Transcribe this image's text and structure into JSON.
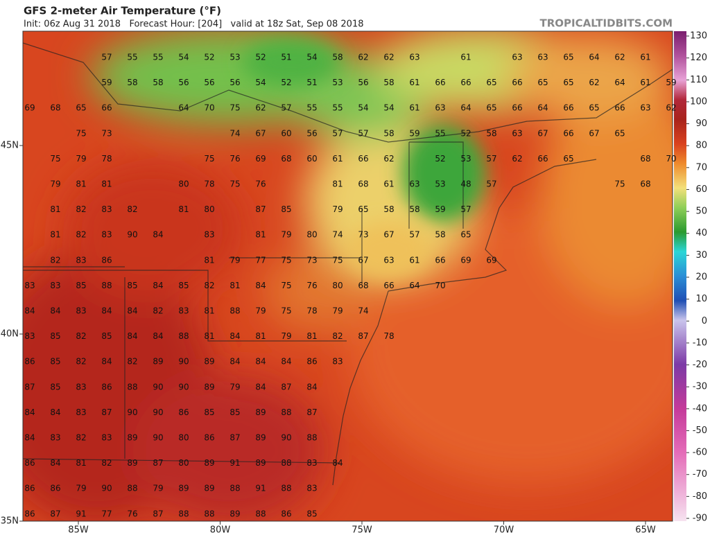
{
  "header": {
    "title": "GFS 2-meter Air Temperature (°F)",
    "subtitle": "Init: 06z Aug 31 2018   Forecast Hour: [204]   valid at 18z Sat, Sep 08 2018",
    "credit": "TROPICALTIDBITS.COM"
  },
  "map": {
    "lat_labels": [
      "45N",
      "40N",
      "35N"
    ],
    "lon_labels": [
      "85W",
      "80W",
      "75W",
      "70W",
      "65W"
    ],
    "colorbar_ticks": [
      130,
      120,
      110,
      100,
      90,
      80,
      70,
      60,
      50,
      40,
      30,
      20,
      10,
      0,
      -10,
      -20,
      -30,
      -40,
      -50,
      -60,
      -70,
      -80,
      -90
    ],
    "values": [
      [
        null,
        null,
        null,
        57,
        55,
        55,
        54,
        52,
        53,
        52,
        51,
        54,
        58,
        62,
        62,
        63,
        null,
        61,
        null,
        63,
        63,
        65,
        64,
        62,
        61,
        null
      ],
      [
        null,
        null,
        null,
        59,
        58,
        58,
        56,
        56,
        56,
        54,
        52,
        51,
        53,
        56,
        58,
        61,
        66,
        66,
        65,
        66,
        65,
        65,
        62,
        64,
        61,
        59
      ],
      [
        69,
        68,
        65,
        66,
        null,
        null,
        64,
        70,
        75,
        62,
        57,
        55,
        55,
        54,
        54,
        61,
        63,
        64,
        65,
        66,
        64,
        66,
        65,
        66,
        63,
        62
      ],
      [
        null,
        null,
        75,
        73,
        null,
        null,
        null,
        null,
        74,
        67,
        60,
        56,
        57,
        57,
        58,
        59,
        55,
        52,
        58,
        63,
        67,
        66,
        67,
        65,
        null,
        null
      ],
      [
        null,
        75,
        79,
        78,
        null,
        null,
        null,
        75,
        76,
        69,
        68,
        60,
        61,
        66,
        62,
        null,
        52,
        53,
        57,
        62,
        66,
        65,
        null,
        null,
        68,
        70
      ],
      [
        null,
        79,
        81,
        81,
        null,
        null,
        80,
        78,
        75,
        76,
        null,
        null,
        81,
        68,
        61,
        63,
        53,
        48,
        57,
        null,
        null,
        null,
        null,
        75,
        68,
        null
      ],
      [
        null,
        81,
        82,
        83,
        82,
        null,
        81,
        80,
        null,
        87,
        85,
        null,
        79,
        65,
        58,
        58,
        59,
        57,
        null,
        null,
        null,
        null,
        null,
        null,
        null,
        null
      ],
      [
        null,
        81,
        82,
        83,
        90,
        84,
        null,
        83,
        null,
        81,
        79,
        80,
        74,
        73,
        67,
        57,
        58,
        65,
        null,
        null,
        null,
        null,
        null,
        null,
        null,
        null
      ],
      [
        null,
        82,
        83,
        86,
        null,
        null,
        null,
        81,
        79,
        77,
        75,
        73,
        75,
        67,
        63,
        61,
        66,
        69,
        69,
        null,
        null,
        null,
        null,
        null,
        null,
        null
      ],
      [
        83,
        83,
        85,
        88,
        85,
        84,
        85,
        82,
        81,
        84,
        75,
        76,
        80,
        68,
        66,
        64,
        70,
        null,
        null,
        null,
        null,
        null,
        null,
        null,
        null,
        null
      ],
      [
        84,
        84,
        83,
        84,
        84,
        82,
        83,
        81,
        88,
        79,
        75,
        78,
        79,
        74,
        null,
        null,
        null,
        null,
        null,
        null,
        null,
        null,
        null,
        null,
        null,
        null
      ],
      [
        83,
        85,
        82,
        85,
        84,
        84,
        88,
        81,
        84,
        81,
        79,
        81,
        82,
        87,
        78,
        null,
        null,
        null,
        null,
        null,
        null,
        null,
        null,
        null,
        null,
        null
      ],
      [
        86,
        85,
        82,
        84,
        82,
        89,
        90,
        89,
        84,
        84,
        84,
        86,
        83,
        null,
        null,
        null,
        null,
        null,
        null,
        null,
        null,
        null,
        null,
        null,
        null,
        null
      ],
      [
        87,
        85,
        83,
        86,
        88,
        90,
        90,
        89,
        79,
        84,
        87,
        84,
        null,
        null,
        null,
        null,
        null,
        null,
        null,
        null,
        null,
        null,
        null,
        null,
        null,
        null
      ],
      [
        84,
        84,
        83,
        87,
        90,
        90,
        86,
        85,
        85,
        89,
        88,
        87,
        null,
        null,
        null,
        null,
        null,
        null,
        null,
        null,
        null,
        null,
        null,
        null,
        null,
        null
      ],
      [
        84,
        83,
        82,
        83,
        89,
        90,
        80,
        86,
        87,
        89,
        90,
        88,
        null,
        null,
        null,
        null,
        null,
        null,
        null,
        null,
        null,
        null,
        null,
        null,
        null,
        null
      ],
      [
        86,
        84,
        81,
        82,
        89,
        87,
        80,
        89,
        91,
        89,
        88,
        83,
        84,
        null,
        null,
        null,
        null,
        null,
        null,
        null,
        null,
        null,
        null,
        null,
        null,
        null
      ],
      [
        86,
        86,
        79,
        90,
        88,
        79,
        89,
        89,
        88,
        91,
        88,
        83,
        null,
        null,
        null,
        null,
        null,
        null,
        null,
        null,
        null,
        null,
        null,
        null,
        null,
        null
      ],
      [
        86,
        87,
        91,
        77,
        76,
        87,
        88,
        88,
        89,
        88,
        86,
        85,
        null,
        null,
        null,
        null,
        null,
        null,
        null,
        null,
        null,
        null,
        null,
        null,
        null,
        null
      ]
    ]
  }
}
